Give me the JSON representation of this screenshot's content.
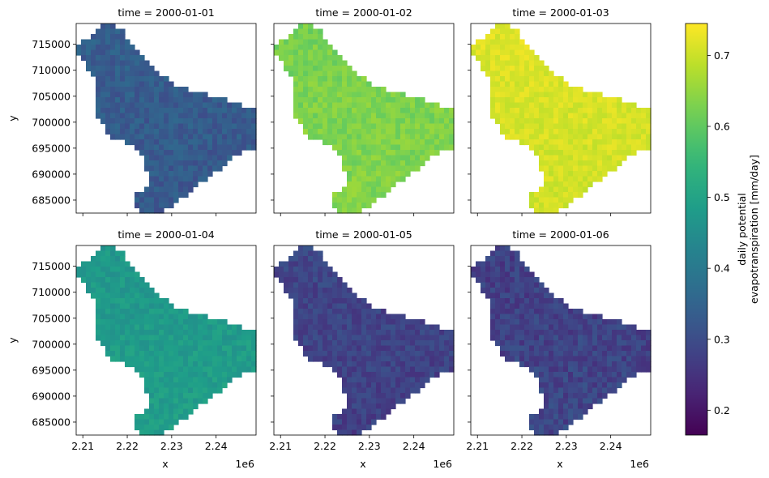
{
  "chart_data": {
    "type": "heatmap",
    "layout": "facet-grid",
    "facet_titles": [
      "time = 2000-01-01",
      "time = 2000-01-02",
      "time = 2000-01-03",
      "time = 2000-01-04",
      "time = 2000-01-05",
      "time = 2000-01-06"
    ],
    "panel_mean_values": [
      0.33,
      0.63,
      0.71,
      0.48,
      0.28,
      0.28
    ],
    "panel_value_spread": [
      0.03,
      0.025,
      0.02,
      0.025,
      0.03,
      0.035
    ],
    "xlabel": "x",
    "ylabel": "y",
    "x_offset_label": "1e6",
    "xlim": [
      2.2085,
      2.249
    ],
    "ylim": [
      682500,
      719000
    ],
    "x_ticks": [
      "2.21",
      "2.22",
      "2.23",
      "2.24"
    ],
    "x_tick_values": [
      2.21,
      2.22,
      2.23,
      2.24
    ],
    "y_ticks": [
      "715000",
      "710000",
      "705000",
      "700000",
      "695000",
      "690000",
      "685000"
    ],
    "y_tick_values": [
      715000,
      710000,
      705000,
      700000,
      695000,
      690000,
      685000
    ],
    "colorbar": {
      "label_lines": [
        "daily potential",
        "evapotranspiration [mm/day]"
      ],
      "ticks": [
        "0.7",
        "0.6",
        "0.5",
        "0.4",
        "0.3",
        "0.2"
      ],
      "tick_values": [
        0.7,
        0.6,
        0.5,
        0.4,
        0.3,
        0.2
      ],
      "vmin": 0.165,
      "vmax": 0.745,
      "colormap": "viridis"
    },
    "grid": false
  }
}
